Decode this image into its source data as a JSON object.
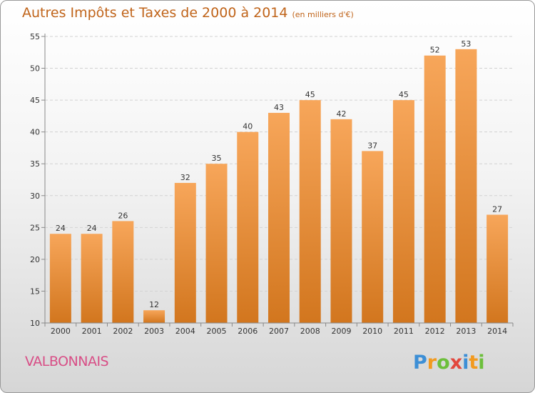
{
  "header": {
    "title": "Autres Impôts et Taxes de 2000 à 2014",
    "subtitle": "(en milliers d'€)"
  },
  "footer": {
    "city": "VALBONNAIS",
    "logo_text": "Proxiti"
  },
  "colors": {
    "bar_top": "#f7a65a",
    "bar_bottom": "#d2761e",
    "title": "#c0641a",
    "city": "#d84e86"
  },
  "chart_data": {
    "type": "bar",
    "title": "Autres Impôts et Taxes de 2000 à 2014",
    "subtitle": "(en milliers d'€)",
    "categories": [
      "2000",
      "2001",
      "2002",
      "2003",
      "2004",
      "2005",
      "2006",
      "2007",
      "2008",
      "2009",
      "2010",
      "2011",
      "2012",
      "2013",
      "2014"
    ],
    "values": [
      24,
      24,
      26,
      12,
      32,
      35,
      40,
      43,
      45,
      42,
      37,
      45,
      52,
      53,
      27
    ],
    "ylim": [
      10,
      55
    ],
    "yticks": [
      10,
      15,
      20,
      25,
      30,
      35,
      40,
      45,
      50,
      55
    ],
    "grid": true,
    "data_labels": true
  }
}
